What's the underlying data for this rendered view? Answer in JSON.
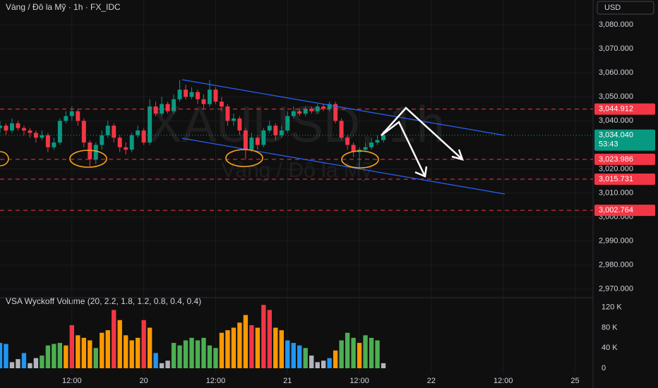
{
  "chart_data": [
    {
      "type": "candlestick",
      "title": "Vàng / Đô la Mỹ · 1h · FX_IDC",
      "currency": "USD",
      "watermark": "XAUUSD, 1h",
      "watermark_subtitle": "Vàng / Đô la Mỹ",
      "x": [
        0,
        1,
        2,
        3,
        4,
        5,
        6,
        7,
        8,
        9,
        10,
        11,
        12,
        13,
        14,
        15,
        16,
        17,
        18,
        19,
        20,
        21,
        22,
        23,
        24,
        25,
        26,
        27,
        28,
        29,
        30,
        31,
        32,
        33,
        34,
        35,
        36,
        37,
        38,
        39,
        40,
        41,
        42,
        43,
        44,
        45,
        46,
        47,
        48,
        49,
        50,
        51,
        52,
        53,
        54,
        55,
        56,
        57,
        58,
        59,
        60,
        61,
        62,
        63,
        64
      ],
      "open": [
        3037,
        3038,
        3036,
        3039,
        3037,
        3036,
        3035,
        3033,
        3034,
        3029,
        3031,
        3040,
        3042,
        3044,
        3040,
        3031,
        3024,
        3030,
        3034,
        3038,
        3033,
        3029,
        3028,
        3034,
        3036,
        3031,
        3046,
        3043,
        3047,
        3044,
        3049,
        3053,
        3050,
        3052,
        3049,
        3047,
        3053,
        3048,
        3046,
        3040,
        3041,
        3036,
        3028,
        3033,
        3030,
        3036,
        3038,
        3034,
        3036,
        3042,
        3044,
        3043,
        3045,
        3044,
        3046,
        3045,
        3047,
        3040,
        3033,
        3030,
        3027,
        3028,
        3029,
        3031,
        3032
      ],
      "high": [
        3040,
        3039,
        3041,
        3040,
        3038,
        3037,
        3036,
        3036,
        3035,
        3033,
        3041,
        3044,
        3046,
        3045,
        3041,
        3032,
        3031,
        3036,
        3040,
        3039,
        3034,
        3031,
        3035,
        3038,
        3037,
        3049,
        3048,
        3050,
        3048,
        3051,
        3057,
        3055,
        3054,
        3053,
        3051,
        3057,
        3054,
        3050,
        3047,
        3043,
        3042,
        3037,
        3035,
        3034,
        3037,
        3040,
        3039,
        3038,
        3044,
        3046,
        3045,
        3046,
        3046,
        3047,
        3047,
        3048,
        3048,
        3041,
        3034,
        3031,
        3029,
        3031,
        3033,
        3034,
        3036
      ],
      "low": [
        3035,
        3034,
        3035,
        3036,
        3034,
        3033,
        3031,
        3032,
        3027,
        3028,
        3030,
        3039,
        3040,
        3038,
        3029,
        3021,
        3022,
        3028,
        3033,
        3031,
        3027,
        3026,
        3027,
        3033,
        3030,
        3030,
        3042,
        3042,
        3043,
        3043,
        3048,
        3049,
        3049,
        3047,
        3045,
        3046,
        3047,
        3044,
        3038,
        3038,
        3034,
        3024,
        3027,
        3028,
        3029,
        3035,
        3032,
        3033,
        3035,
        3041,
        3042,
        3042,
        3043,
        3043,
        3044,
        3044,
        3039,
        3032,
        3028,
        3025,
        3020,
        3027,
        3028,
        3030,
        3031
      ],
      "close": [
        3038,
        3036,
        3039,
        3037,
        3036,
        3035,
        3033,
        3034,
        3029,
        3031,
        3040,
        3042,
        3044,
        3040,
        3031,
        3024,
        3030,
        3034,
        3038,
        3033,
        3029,
        3028,
        3034,
        3036,
        3031,
        3046,
        3043,
        3047,
        3044,
        3049,
        3053,
        3050,
        3052,
        3049,
        3047,
        3053,
        3048,
        3046,
        3040,
        3041,
        3036,
        3028,
        3033,
        3030,
        3036,
        3038,
        3034,
        3036,
        3042,
        3044,
        3043,
        3045,
        3044,
        3046,
        3045,
        3047,
        3040,
        3033,
        3030,
        3027,
        3028,
        3029,
        3031,
        3032,
        3034.04
      ],
      "up_color": "#089981",
      "down_color": "#f23645",
      "xlim": [
        0,
        99
      ],
      "xticks": [
        {
          "value": 12,
          "label": "12:00"
        },
        20,
        {
          "value": 36,
          "label": "12:00"
        },
        21,
        {
          "value": 60,
          "label": "12:00"
        },
        22,
        {
          "value": 84,
          "label": "12:00"
        },
        25
      ],
      "xtick_positions": [
        12,
        24,
        36,
        48,
        60,
        72,
        84,
        96
      ],
      "ylim": [
        2967,
        3090.3
      ],
      "yticks": [
        {
          "value": 3080,
          "label": "3,080.000"
        },
        {
          "value": 3070,
          "label": "3,070.000"
        },
        {
          "value": 3060,
          "label": "3,060.000"
        },
        {
          "value": 3050,
          "label": "3,050.000"
        },
        {
          "value": 3040,
          "label": "3,040.000"
        },
        {
          "value": 3020,
          "label": "3,020.000"
        },
        {
          "value": 3010,
          "label": "3,010.000"
        },
        {
          "value": 3000,
          "label": "3,000.000"
        },
        {
          "value": 2990,
          "label": "2,990.000"
        },
        {
          "value": 2980,
          "label": "2,980.000"
        },
        {
          "value": 2970,
          "label": "2,970.000"
        }
      ],
      "price_lines": [
        {
          "value": 3044.912,
          "label": "3,044.912"
        },
        {
          "value": 3023.986,
          "label": "3,023.986"
        },
        {
          "value": 3015.731,
          "label": "3,015.731"
        },
        {
          "value": 3002.764,
          "label": "3,002.764"
        }
      ],
      "price_line_color": "#f23645",
      "last_price": {
        "value": 3034.04,
        "label": "3,034.040",
        "countdown": "53:43"
      }
    },
    {
      "type": "bar",
      "title": "VSA Wyckoff Volume (20, 2.2, 1.8, 1.2, 0.8, 0.4, 0.4)",
      "values": [
        50000,
        48000,
        12000,
        18000,
        30000,
        10000,
        20000,
        25000,
        45000,
        48000,
        50000,
        45000,
        85000,
        65000,
        60000,
        55000,
        40000,
        70000,
        75000,
        115000,
        95000,
        65000,
        55000,
        60000,
        95000,
        80000,
        30000,
        10000,
        15000,
        50000,
        45000,
        55000,
        60000,
        55000,
        60000,
        45000,
        40000,
        70000,
        75000,
        80000,
        90000,
        105000,
        85000,
        80000,
        125000,
        115000,
        80000,
        75000,
        55000,
        50000,
        45000,
        40000,
        25000,
        12000,
        15000,
        20000,
        35000,
        55000,
        70000,
        60000,
        50000,
        65000,
        60000,
        55000,
        10000
      ],
      "colors": [
        "#2196f3",
        "#2196f3",
        "#b2b5be",
        "#b2b5be",
        "#2196f3",
        "#b2b5be",
        "#b2b5be",
        "#4caf50",
        "#4caf50",
        "#4caf50",
        "#4caf50",
        "#ff9800",
        "#f23645",
        "#ff9800",
        "#ff9800",
        "#ff9800",
        "#4caf50",
        "#ff9800",
        "#ff9800",
        "#f23645",
        "#ff9800",
        "#ff9800",
        "#ff9800",
        "#ff9800",
        "#f23645",
        "#ff9800",
        "#2196f3",
        "#b2b5be",
        "#b2b5be",
        "#4caf50",
        "#4caf50",
        "#4caf50",
        "#4caf50",
        "#4caf50",
        "#4caf50",
        "#4caf50",
        "#4caf50",
        "#ff9800",
        "#ff9800",
        "#ff9800",
        "#ff9800",
        "#ff9800",
        "#f23645",
        "#ff9800",
        "#f23645",
        "#f23645",
        "#ff9800",
        "#ff9800",
        "#2196f3",
        "#2196f3",
        "#2196f3",
        "#4caf50",
        "#b2b5be",
        "#b2b5be",
        "#b2b5be",
        "#2196f3",
        "#ff9800",
        "#4caf50",
        "#4caf50",
        "#4caf50",
        "#ff9800",
        "#4caf50",
        "#4caf50",
        "#4caf50",
        "#b2b5be"
      ],
      "ylim": [
        0,
        135000
      ],
      "yticks": [
        0,
        {
          "value": 40000,
          "label": "40 K"
        },
        {
          "value": 80000,
          "label": "80 K"
        },
        {
          "value": 120000,
          "label": "120 K"
        }
      ]
    }
  ]
}
